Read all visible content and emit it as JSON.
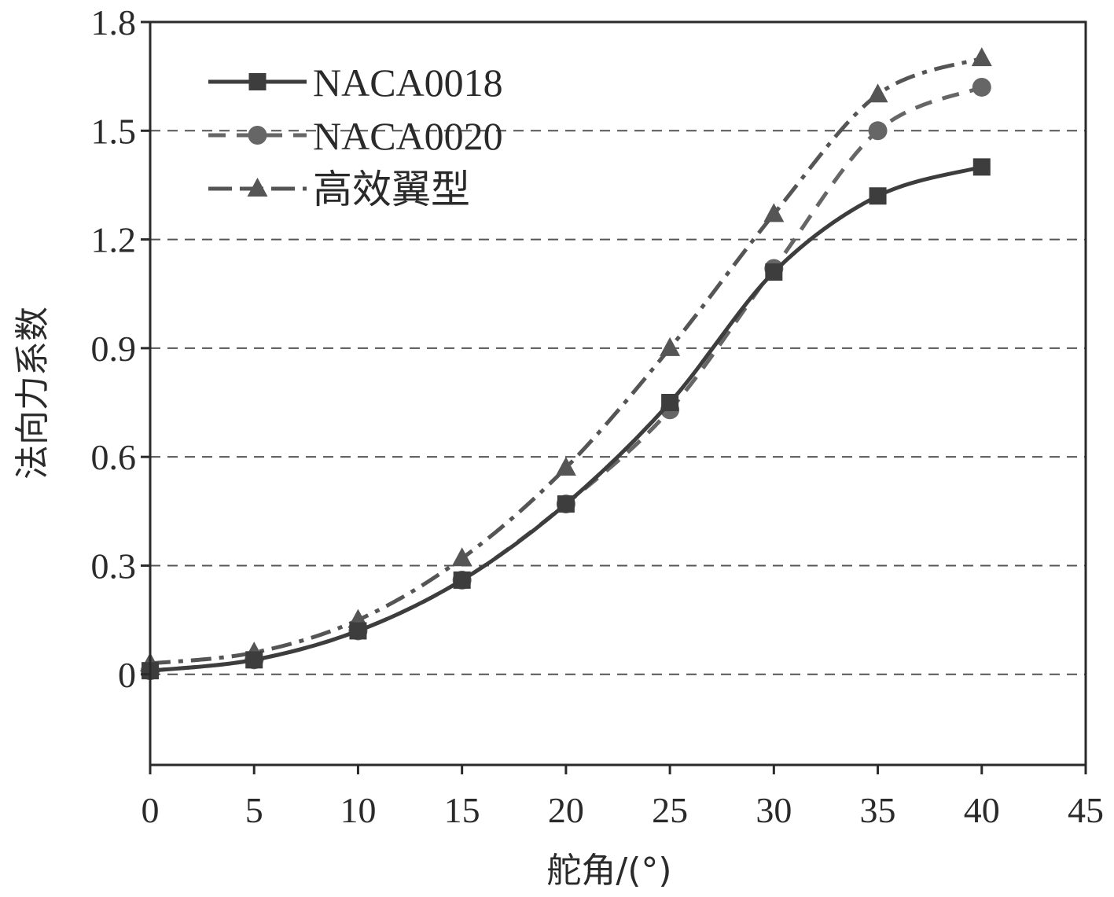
{
  "chart_data": {
    "type": "line",
    "title": "",
    "xlabel": "舵角/(°)",
    "ylabel": "法向力系数",
    "xlim": [
      0,
      45
    ],
    "ylim": [
      -0.25,
      1.8
    ],
    "x_ticks": [
      "0",
      "5",
      "10",
      "15",
      "20",
      "25",
      "30",
      "35",
      "40",
      "45"
    ],
    "y_ticks": [
      "0",
      "0.3",
      "0.6",
      "0.9",
      "1.2",
      "1.5",
      "1.8"
    ],
    "grid": "horizontal dashed",
    "legend_position": "top-left",
    "x": [
      0,
      5,
      10,
      15,
      20,
      25,
      30,
      35,
      40
    ],
    "series": [
      {
        "name": "NACA0018",
        "marker": "square",
        "line_style": "solid",
        "color": "#3d3d3d",
        "values": [
          0.01,
          0.04,
          0.12,
          0.26,
          0.47,
          0.75,
          1.11,
          1.32,
          1.4
        ]
      },
      {
        "name": "NACA0020",
        "marker": "circle",
        "line_style": "dashed",
        "color": "#666666",
        "values": [
          0.01,
          0.04,
          0.12,
          0.26,
          0.47,
          0.73,
          1.12,
          1.5,
          1.62
        ]
      },
      {
        "name": "高效翼型",
        "marker": "triangle",
        "line_style": "dash-dot",
        "color": "#555555",
        "values": [
          0.03,
          0.06,
          0.15,
          0.32,
          0.57,
          0.9,
          1.27,
          1.6,
          1.7
        ]
      }
    ]
  }
}
